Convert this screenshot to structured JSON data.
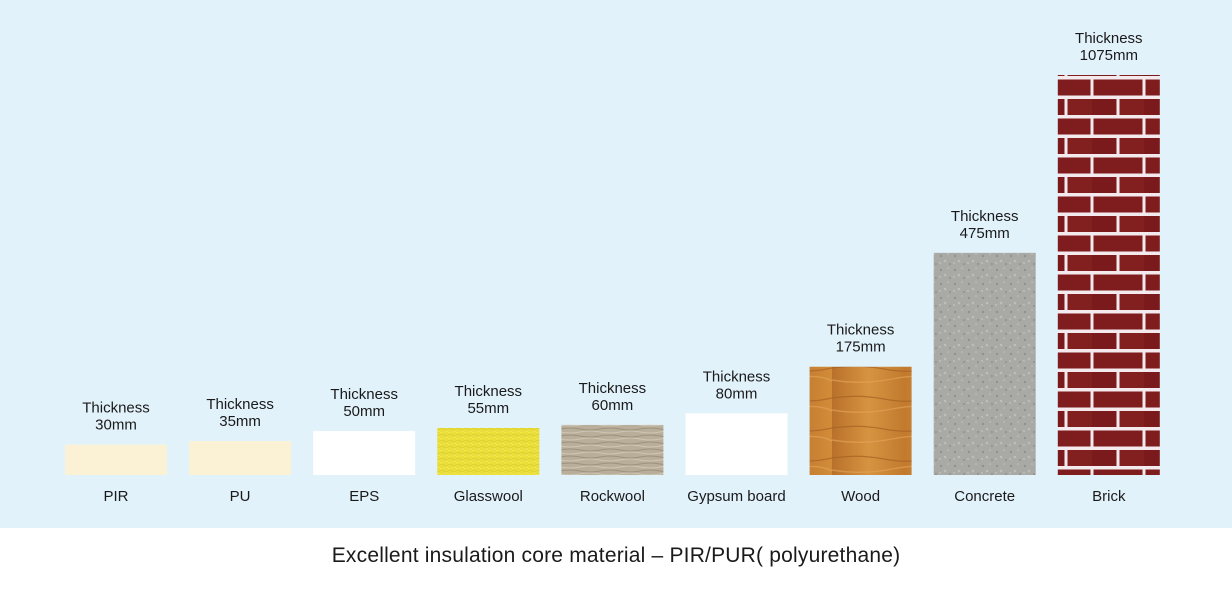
{
  "caption": "Excellent insulation core material – PIR/PUR( polyurethane)",
  "chart_data": {
    "type": "bar",
    "categories": [
      "PIR",
      "PU",
      "EPS",
      "Glasswool",
      "Rockwool",
      "Gypsum board",
      "Wood",
      "Concrete",
      "Brick"
    ],
    "values": [
      30,
      35,
      50,
      55,
      60,
      80,
      175,
      475,
      1075
    ],
    "value_labels": [
      [
        "Thickness",
        "30mm"
      ],
      [
        "Thickness",
        "35mm"
      ],
      [
        "Thickness",
        "50mm"
      ],
      [
        "Thickness",
        "55mm"
      ],
      [
        "Thickness",
        "60mm"
      ],
      [
        "Thickness",
        "80mm"
      ],
      [
        "Thickness",
        "175mm"
      ],
      [
        "Thickness",
        "475mm"
      ],
      [
        "Thickness",
        "1075mm"
      ]
    ],
    "textures": [
      "cream",
      "cream",
      "white",
      "glasswool",
      "rockwool",
      "white",
      "wood",
      "concrete",
      "brick"
    ],
    "colors": [
      "#fbf2d5",
      "#fbf2d5",
      "#ffffff",
      "#ece13c",
      "#b8ac97",
      "#ffffff",
      "#c97d2d",
      "#a8a8a5",
      "#7c1d1d"
    ],
    "grid": false,
    "legend": "none"
  }
}
